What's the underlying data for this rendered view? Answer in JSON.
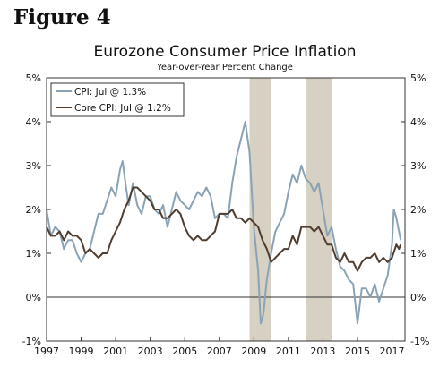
{
  "figure_label": "Figure 4",
  "chart_data": {
    "type": "line",
    "title": "Eurozone Consumer Price Inflation",
    "subtitle": "Year-over-Year Percent Change",
    "xlabel": "",
    "ylabel": "",
    "xlim": [
      1997.0,
      2017.75
    ],
    "ylim": [
      -1,
      5
    ],
    "x_ticks": [
      "1997",
      "1999",
      "2001",
      "2003",
      "2005",
      "2007",
      "2009",
      "2011",
      "2013",
      "2015",
      "2017"
    ],
    "y_ticks": [
      "-1%",
      "0%",
      "1%",
      "2%",
      "3%",
      "4%",
      "5%"
    ],
    "grid": false,
    "legend": "top-left",
    "recession_shading": [
      [
        2008.75,
        2010.0
      ],
      [
        2012.0,
        2013.5
      ]
    ],
    "colors": {
      "cpi": "#8aa3b4",
      "core_cpi": "#4f3d2f",
      "shade": "#d6d1c3"
    },
    "series": [
      {
        "name": "CPI: Jul @ 1.3%",
        "x": [
          1997.0,
          1997.25,
          1997.5,
          1997.75,
          1998.0,
          1998.25,
          1998.5,
          1998.75,
          1999.0,
          1999.25,
          1999.5,
          1999.75,
          2000.0,
          2000.25,
          2000.5,
          2000.75,
          2001.0,
          2001.25,
          2001.4,
          2001.6,
          2001.75,
          2002.0,
          2002.25,
          2002.5,
          2002.75,
          2003.0,
          2003.25,
          2003.5,
          2003.75,
          2004.0,
          2004.25,
          2004.5,
          2004.75,
          2005.0,
          2005.25,
          2005.5,
          2005.75,
          2006.0,
          2006.25,
          2006.5,
          2006.75,
          2007.0,
          2007.25,
          2007.5,
          2007.75,
          2008.0,
          2008.25,
          2008.5,
          2008.75,
          2009.0,
          2009.25,
          2009.4,
          2009.55,
          2009.75,
          2010.0,
          2010.25,
          2010.5,
          2010.75,
          2011.0,
          2011.25,
          2011.5,
          2011.75,
          2012.0,
          2012.25,
          2012.5,
          2012.75,
          2013.0,
          2013.25,
          2013.5,
          2013.75,
          2014.0,
          2014.25,
          2014.5,
          2014.75,
          2015.0,
          2015.25,
          2015.5,
          2015.75,
          2016.0,
          2016.25,
          2016.5,
          2016.75,
          2017.0,
          2017.1,
          2017.25,
          2017.4,
          2017.5
        ],
        "values": [
          2.0,
          1.4,
          1.6,
          1.5,
          1.1,
          1.3,
          1.3,
          1.0,
          0.8,
          1.0,
          1.1,
          1.5,
          1.9,
          1.9,
          2.2,
          2.5,
          2.3,
          2.9,
          3.1,
          2.5,
          2.1,
          2.6,
          2.1,
          1.9,
          2.3,
          2.3,
          2.0,
          1.9,
          2.1,
          1.6,
          2.0,
          2.4,
          2.2,
          2.1,
          2.0,
          2.2,
          2.4,
          2.3,
          2.5,
          2.3,
          1.8,
          1.9,
          1.9,
          1.8,
          2.6,
          3.2,
          3.6,
          4.0,
          3.3,
          1.6,
          0.6,
          -0.6,
          -0.4,
          0.4,
          1.0,
          1.5,
          1.7,
          1.9,
          2.4,
          2.8,
          2.6,
          3.0,
          2.7,
          2.6,
          2.4,
          2.6,
          2.0,
          1.4,
          1.6,
          1.1,
          0.7,
          0.6,
          0.4,
          0.3,
          -0.6,
          0.2,
          0.2,
          0.0,
          0.3,
          -0.1,
          0.2,
          0.5,
          1.2,
          2.0,
          1.8,
          1.5,
          1.3
        ]
      },
      {
        "name": "Core CPI: Jul @ 1.2%",
        "x": [
          1997.0,
          1997.25,
          1997.5,
          1997.75,
          1998.0,
          1998.25,
          1998.5,
          1998.75,
          1999.0,
          1999.25,
          1999.5,
          1999.75,
          2000.0,
          2000.25,
          2000.5,
          2000.75,
          2001.0,
          2001.25,
          2001.5,
          2001.75,
          2002.0,
          2002.25,
          2002.5,
          2002.75,
          2003.0,
          2003.25,
          2003.5,
          2003.75,
          2004.0,
          2004.25,
          2004.5,
          2004.75,
          2005.0,
          2005.25,
          2005.5,
          2005.75,
          2006.0,
          2006.25,
          2006.5,
          2006.75,
          2007.0,
          2007.25,
          2007.5,
          2007.75,
          2008.0,
          2008.25,
          2008.5,
          2008.75,
          2009.0,
          2009.25,
          2009.5,
          2009.75,
          2010.0,
          2010.25,
          2010.5,
          2010.75,
          2011.0,
          2011.25,
          2011.5,
          2011.75,
          2012.0,
          2012.25,
          2012.5,
          2012.75,
          2013.0,
          2013.25,
          2013.5,
          2013.75,
          2014.0,
          2014.25,
          2014.5,
          2014.75,
          2015.0,
          2015.25,
          2015.5,
          2015.75,
          2016.0,
          2016.25,
          2016.5,
          2016.75,
          2017.0,
          2017.25,
          2017.4,
          2017.5
        ],
        "values": [
          1.6,
          1.4,
          1.4,
          1.5,
          1.3,
          1.5,
          1.4,
          1.4,
          1.3,
          1.0,
          1.1,
          1.0,
          0.9,
          1.0,
          1.0,
          1.3,
          1.5,
          1.7,
          2.0,
          2.2,
          2.5,
          2.5,
          2.4,
          2.3,
          2.2,
          2.0,
          2.0,
          1.8,
          1.8,
          1.9,
          2.0,
          1.9,
          1.6,
          1.4,
          1.3,
          1.4,
          1.3,
          1.3,
          1.4,
          1.5,
          1.9,
          1.9,
          1.9,
          2.0,
          1.8,
          1.8,
          1.7,
          1.8,
          1.7,
          1.6,
          1.3,
          1.1,
          0.8,
          0.9,
          1.0,
          1.1,
          1.1,
          1.4,
          1.2,
          1.6,
          1.6,
          1.6,
          1.5,
          1.6,
          1.4,
          1.2,
          1.2,
          0.9,
          0.8,
          1.0,
          0.8,
          0.8,
          0.6,
          0.8,
          0.9,
          0.9,
          1.0,
          0.8,
          0.9,
          0.8,
          0.9,
          1.2,
          1.1,
          1.2
        ]
      }
    ]
  }
}
